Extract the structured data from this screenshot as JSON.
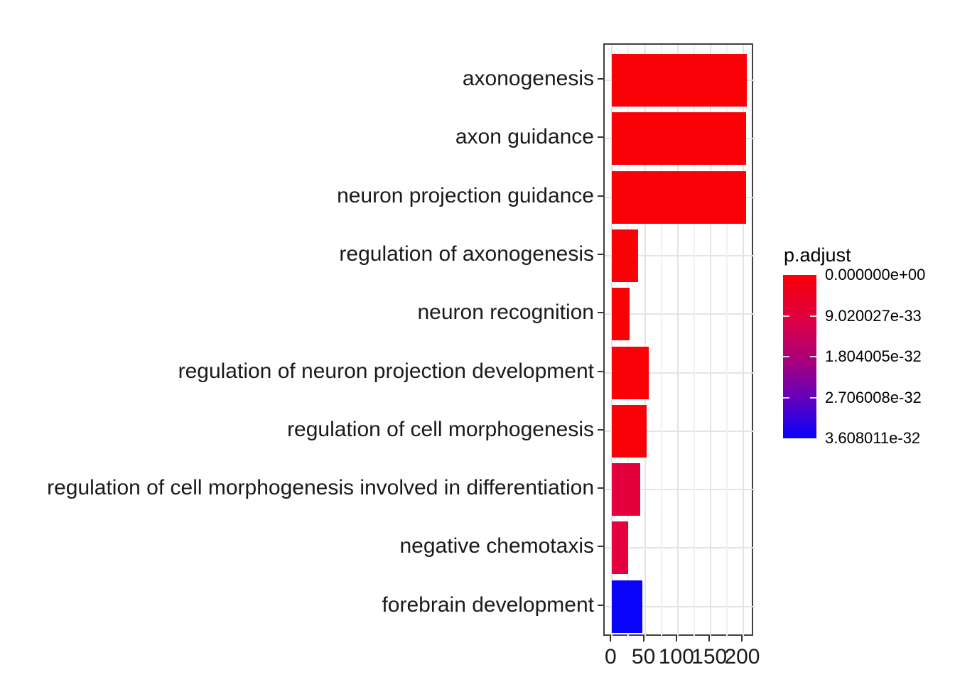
{
  "chart_data": {
    "type": "bar",
    "orientation": "horizontal",
    "title": "",
    "xlabel": "",
    "ylabel": "",
    "categories": [
      "axonogenesis",
      "axon guidance",
      "neuron projection guidance",
      "regulation of axonogenesis",
      "neuron recognition",
      "regulation of neuron projection development",
      "regulation of cell morphogenesis",
      "regulation of cell morphogenesis involved in differentiation",
      "negative chemotaxis",
      "forebrain development"
    ],
    "values": [
      205,
      204,
      204,
      40,
      27,
      56,
      53,
      43,
      24,
      46
    ],
    "bar_colors": [
      "#FA0007",
      "#FA0007",
      "#FA0007",
      "#FA0007",
      "#FA0007",
      "#FA0007",
      "#FA0007",
      "#E4003C",
      "#E4003C",
      "#0903FA"
    ],
    "x_axis": {
      "ticks": [
        0,
        50,
        100,
        150,
        200
      ],
      "tick_labels": [
        "0",
        "50",
        "100",
        "150",
        "200"
      ],
      "minor_ticks": [
        25,
        75,
        125,
        175
      ],
      "xlim_display": [
        -11,
        217
      ]
    },
    "grid": "vertical major+minor, horizontal major at category centers",
    "legend": {
      "title": "p.adjust",
      "type": "colorbar",
      "position": "right",
      "labels": [
        "0.000000e+00",
        "9.020027e-33",
        "1.804005e-32",
        "2.706008e-32",
        "3.608011e-32"
      ],
      "gradient_stops": [
        "#FA0007",
        "#E2003F",
        "#AE0073",
        "#6600BB",
        "#0903FA"
      ]
    },
    "style_colors": {
      "bar_red_low_p": "#FA0007",
      "bar_crimson": "#E4003C",
      "bar_blue_high_p": "#0903FA",
      "grid_major": "#E4E4E4",
      "grid_minor": "#F1F1F1",
      "panel_border": "#404040",
      "axis_tick": "#333333",
      "axis_text": "#1A1A1A",
      "legend_text": "#000000",
      "background": "#FFFFFF"
    }
  }
}
